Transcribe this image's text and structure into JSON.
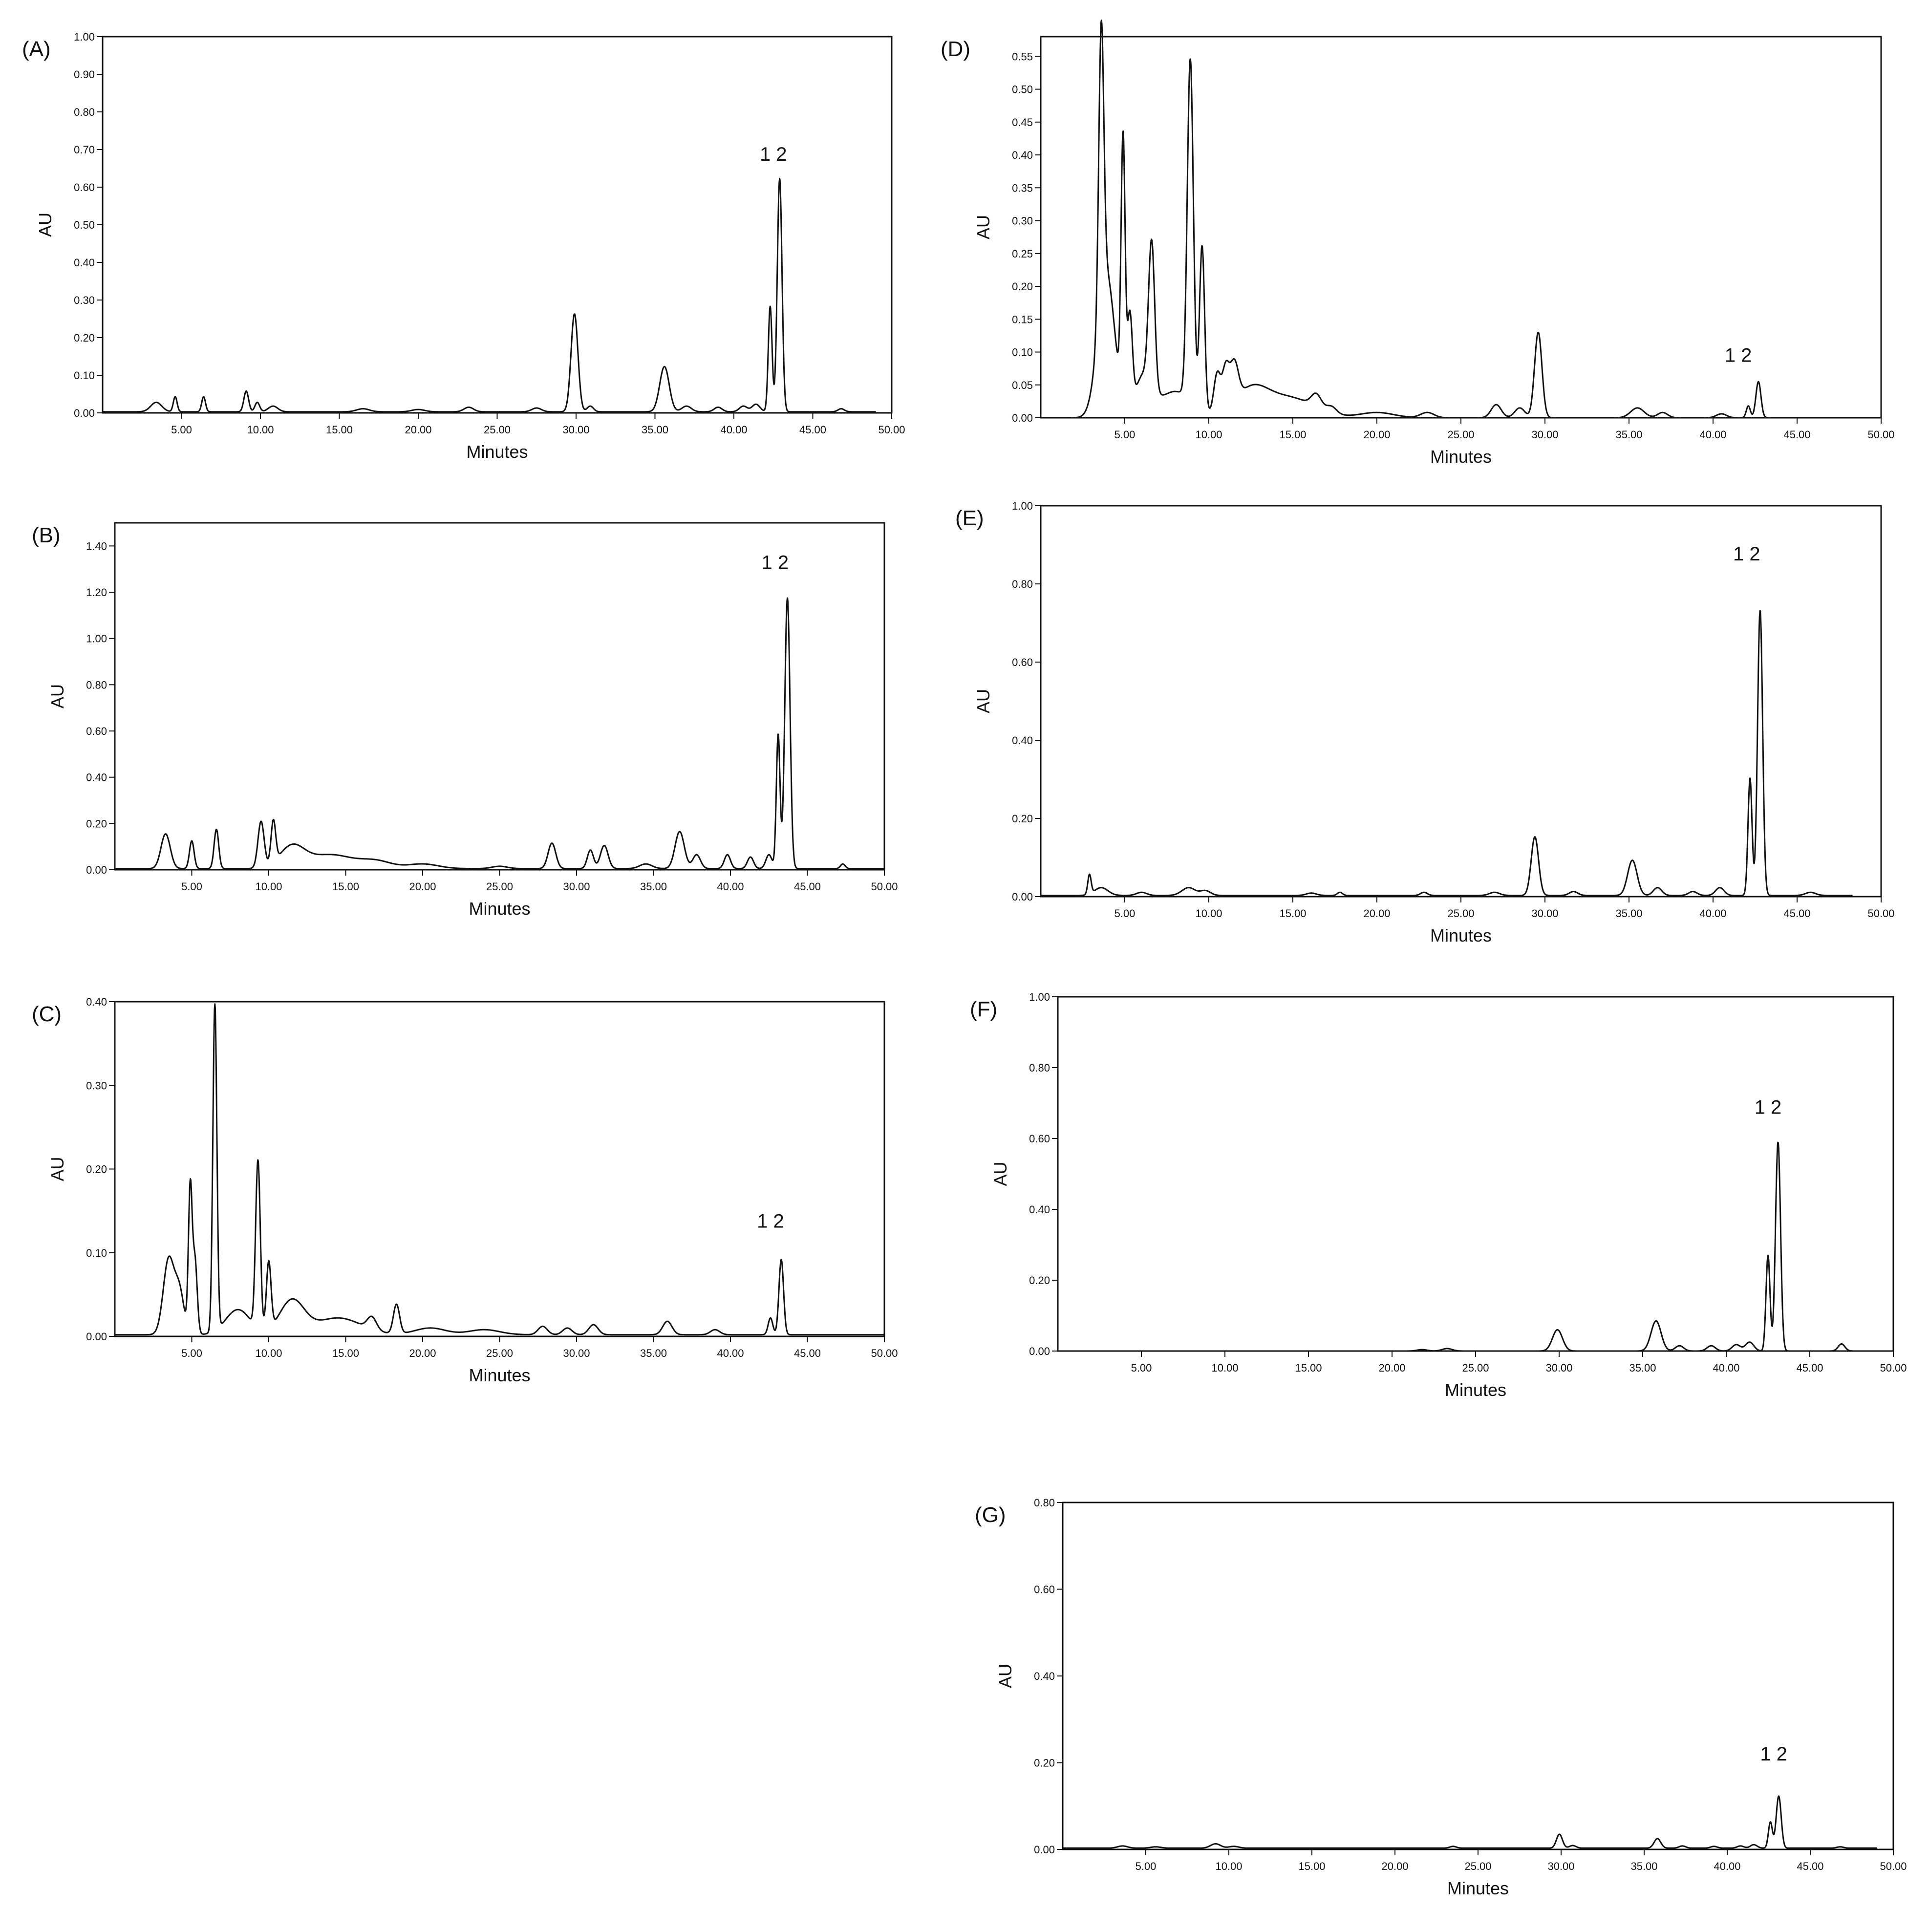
{
  "chart_data": [
    {
      "panel": "(A)",
      "type": "line",
      "xlabel": "Minutes",
      "ylabel": "AU",
      "xlim": [
        0,
        50
      ],
      "ylim": [
        0,
        1.0
      ],
      "x_ticks": [
        "5.00",
        "10.00",
        "15.00",
        "20.00",
        "25.00",
        "30.00",
        "35.00",
        "40.00",
        "45.00",
        "50.00"
      ],
      "y_ticks": [
        "0.00",
        "0.10",
        "0.20",
        "0.30",
        "0.40",
        "0.50",
        "0.60",
        "0.70",
        "0.80",
        "0.90",
        "1.00"
      ],
      "peak_label": "1 2",
      "peak_label_x": 42.5,
      "peak_label_y": 0.67,
      "x_end": 49,
      "baseline": 0.003,
      "peaks": [
        [
          3.4,
          0.025,
          0.35
        ],
        [
          4.6,
          0.04,
          0.12
        ],
        [
          6.4,
          0.04,
          0.12
        ],
        [
          9.1,
          0.055,
          0.15
        ],
        [
          9.8,
          0.025,
          0.15
        ],
        [
          10.8,
          0.015,
          0.3
        ],
        [
          16.5,
          0.008,
          0.4
        ],
        [
          20.0,
          0.006,
          0.4
        ],
        [
          23.2,
          0.012,
          0.3
        ],
        [
          27.5,
          0.01,
          0.3
        ],
        [
          29.9,
          0.26,
          0.22
        ],
        [
          30.9,
          0.015,
          0.2
        ],
        [
          35.6,
          0.12,
          0.3
        ],
        [
          37.0,
          0.015,
          0.3
        ],
        [
          39.0,
          0.012,
          0.25
        ],
        [
          40.6,
          0.015,
          0.25
        ],
        [
          41.4,
          0.02,
          0.25
        ],
        [
          42.3,
          0.28,
          0.12
        ],
        [
          42.9,
          0.62,
          0.15
        ],
        [
          46.8,
          0.008,
          0.2
        ]
      ]
    },
    {
      "panel": "(B)",
      "type": "line",
      "xlabel": "Minutes",
      "ylabel": "AU",
      "xlim": [
        0,
        50
      ],
      "ylim": [
        0,
        1.5
      ],
      "x_ticks": [
        "5.00",
        "10.00",
        "15.00",
        "20.00",
        "25.00",
        "30.00",
        "35.00",
        "40.00",
        "45.00",
        "50.00"
      ],
      "y_ticks": [
        "0.00",
        "0.20",
        "0.40",
        "0.60",
        "0.80",
        "1.00",
        "1.20",
        "1.40"
      ],
      "peak_label": "1 2",
      "peak_label_x": 42.9,
      "peak_label_y": 1.3,
      "x_end": 50,
      "baseline": 0.005,
      "peaks": [
        [
          3.3,
          0.15,
          0.3
        ],
        [
          5.0,
          0.12,
          0.15
        ],
        [
          6.6,
          0.17,
          0.15
        ],
        [
          9.5,
          0.2,
          0.2
        ],
        [
          10.3,
          0.18,
          0.15
        ],
        [
          11.5,
          0.09,
          0.8
        ],
        [
          14.0,
          0.06,
          1.5
        ],
        [
          17.0,
          0.03,
          1.0
        ],
        [
          20.0,
          0.02,
          1.0
        ],
        [
          25.0,
          0.01,
          0.5
        ],
        [
          28.4,
          0.11,
          0.25
        ],
        [
          30.9,
          0.08,
          0.2
        ],
        [
          31.8,
          0.1,
          0.25
        ],
        [
          34.5,
          0.02,
          0.4
        ],
        [
          36.7,
          0.16,
          0.3
        ],
        [
          37.8,
          0.06,
          0.25
        ],
        [
          39.8,
          0.06,
          0.2
        ],
        [
          41.3,
          0.05,
          0.2
        ],
        [
          42.5,
          0.06,
          0.2
        ],
        [
          43.1,
          0.58,
          0.12
        ],
        [
          43.7,
          1.17,
          0.17
        ],
        [
          47.3,
          0.02,
          0.15
        ]
      ]
    },
    {
      "panel": "(C)",
      "type": "line",
      "xlabel": "Minutes",
      "ylabel": "AU",
      "xlim": [
        0,
        50
      ],
      "ylim": [
        0,
        0.4
      ],
      "x_ticks": [
        "5.00",
        "10.00",
        "15.00",
        "20.00",
        "25.00",
        "30.00",
        "35.00",
        "40.00",
        "45.00",
        "50.00"
      ],
      "y_ticks": [
        "0.00",
        "0.10",
        "0.20",
        "0.30",
        "0.40"
      ],
      "peak_label": "1 2",
      "peak_label_x": 42.6,
      "peak_label_y": 0.13,
      "x_end": 50,
      "baseline": 0.002,
      "peaks": [
        [
          3.5,
          0.09,
          0.35
        ],
        [
          4.2,
          0.05,
          0.3
        ],
        [
          4.9,
          0.17,
          0.12
        ],
        [
          5.2,
          0.09,
          0.15
        ],
        [
          6.5,
          0.39,
          0.13
        ],
        [
          8.0,
          0.03,
          0.8
        ],
        [
          9.3,
          0.2,
          0.15
        ],
        [
          10.0,
          0.08,
          0.15
        ],
        [
          11.5,
          0.04,
          0.8
        ],
        [
          14.5,
          0.02,
          1.5
        ],
        [
          16.7,
          0.015,
          0.3
        ],
        [
          18.3,
          0.035,
          0.2
        ],
        [
          20.5,
          0.008,
          1.0
        ],
        [
          24.0,
          0.006,
          1.0
        ],
        [
          27.8,
          0.01,
          0.3
        ],
        [
          29.4,
          0.008,
          0.3
        ],
        [
          31.1,
          0.012,
          0.3
        ],
        [
          35.9,
          0.016,
          0.3
        ],
        [
          39.0,
          0.006,
          0.3
        ],
        [
          42.6,
          0.02,
          0.15
        ],
        [
          43.3,
          0.09,
          0.15
        ]
      ]
    },
    {
      "panel": "(D)",
      "type": "line",
      "xlabel": "Minutes",
      "ylabel": "AU",
      "xlim": [
        0,
        50
      ],
      "ylim": [
        0,
        0.58
      ],
      "x_ticks": [
        "5.00",
        "10.00",
        "15.00",
        "20.00",
        "25.00",
        "30.00",
        "35.00",
        "40.00",
        "45.00",
        "50.00"
      ],
      "y_ticks": [
        "0.00",
        "0.05",
        "0.10",
        "0.15",
        "0.20",
        "0.25",
        "0.30",
        "0.35",
        "0.40",
        "0.45",
        "0.50",
        "0.55"
      ],
      "peak_label": "1 2",
      "peak_label_x": 41.5,
      "peak_label_y": 0.085,
      "x_end": 50,
      "baseline": 0.0,
      "peaks": [
        [
          3.6,
          0.42,
          0.15
        ],
        [
          3.9,
          0.22,
          0.5
        ],
        [
          4.9,
          0.4,
          0.12
        ],
        [
          5.3,
          0.14,
          0.15
        ],
        [
          6.1,
          0.06,
          0.5
        ],
        [
          6.6,
          0.22,
          0.18
        ],
        [
          8.0,
          0.04,
          1.0
        ],
        [
          8.9,
          0.52,
          0.18
        ],
        [
          9.6,
          0.25,
          0.15
        ],
        [
          10.5,
          0.06,
          0.2
        ],
        [
          11.0,
          0.06,
          0.2
        ],
        [
          11.5,
          0.06,
          0.25
        ],
        [
          12.5,
          0.04,
          1.0
        ],
        [
          14.8,
          0.03,
          1.5
        ],
        [
          16.4,
          0.02,
          0.3
        ],
        [
          17.3,
          0.01,
          0.3
        ],
        [
          20.0,
          0.008,
          1.0
        ],
        [
          23.0,
          0.008,
          0.4
        ],
        [
          27.1,
          0.02,
          0.3
        ],
        [
          28.5,
          0.015,
          0.3
        ],
        [
          29.6,
          0.13,
          0.22
        ],
        [
          35.5,
          0.015,
          0.4
        ],
        [
          37.0,
          0.008,
          0.3
        ],
        [
          40.5,
          0.006,
          0.3
        ],
        [
          42.1,
          0.018,
          0.12
        ],
        [
          42.7,
          0.055,
          0.15
        ]
      ]
    },
    {
      "panel": "(E)",
      "type": "line",
      "xlabel": "Minutes",
      "ylabel": "AU",
      "xlim": [
        0,
        50
      ],
      "ylim": [
        0,
        1.0
      ],
      "x_ticks": [
        "5.00",
        "10.00",
        "15.00",
        "20.00",
        "25.00",
        "30.00",
        "35.00",
        "40.00",
        "45.00",
        "50.00"
      ],
      "y_ticks": [
        "0.00",
        "0.20",
        "0.40",
        "0.60",
        "0.80",
        "1.00"
      ],
      "peak_label": "1 2",
      "peak_label_x": 42.0,
      "peak_label_y": 0.86,
      "x_end": 48.3,
      "baseline": 0.003,
      "peaks": [
        [
          2.9,
          0.05,
          0.1
        ],
        [
          3.6,
          0.02,
          0.4
        ],
        [
          6.0,
          0.008,
          0.3
        ],
        [
          8.8,
          0.02,
          0.4
        ],
        [
          9.8,
          0.012,
          0.3
        ],
        [
          16.1,
          0.006,
          0.3
        ],
        [
          17.8,
          0.008,
          0.15
        ],
        [
          22.8,
          0.008,
          0.2
        ],
        [
          27.0,
          0.008,
          0.3
        ],
        [
          29.4,
          0.15,
          0.22
        ],
        [
          31.7,
          0.01,
          0.25
        ],
        [
          35.2,
          0.09,
          0.28
        ],
        [
          36.7,
          0.02,
          0.25
        ],
        [
          38.8,
          0.01,
          0.25
        ],
        [
          40.4,
          0.02,
          0.25
        ],
        [
          42.2,
          0.3,
          0.12
        ],
        [
          42.8,
          0.73,
          0.15
        ],
        [
          45.8,
          0.008,
          0.3
        ]
      ]
    },
    {
      "panel": "(F)",
      "type": "line",
      "xlabel": "Minutes",
      "ylabel": "AU",
      "xlim": [
        0,
        50
      ],
      "ylim": [
        0,
        1.0
      ],
      "x_ticks": [
        "5.00",
        "10.00",
        "15.00",
        "20.00",
        "25.00",
        "30.00",
        "35.00",
        "40.00",
        "45.00",
        "50.00"
      ],
      "y_ticks": [
        "0.00",
        "0.20",
        "0.40",
        "0.60",
        "0.80",
        "1.00"
      ],
      "peak_label": "1 2",
      "peak_label_x": 42.5,
      "peak_label_y": 0.67,
      "x_end": 50,
      "baseline": 0.0,
      "peaks": [
        [
          21.8,
          0.004,
          0.3
        ],
        [
          23.3,
          0.007,
          0.3
        ],
        [
          29.9,
          0.06,
          0.3
        ],
        [
          35.8,
          0.085,
          0.3
        ],
        [
          37.2,
          0.015,
          0.25
        ],
        [
          39.1,
          0.015,
          0.25
        ],
        [
          40.6,
          0.018,
          0.25
        ],
        [
          41.4,
          0.025,
          0.25
        ],
        [
          42.5,
          0.27,
          0.12
        ],
        [
          43.1,
          0.59,
          0.15
        ],
        [
          46.9,
          0.02,
          0.2
        ]
      ]
    },
    {
      "panel": "(G)",
      "type": "line",
      "xlabel": "Minutes",
      "ylabel": "AU",
      "xlim": [
        0,
        50
      ],
      "ylim": [
        0,
        0.8
      ],
      "x_ticks": [
        "5.00",
        "10.00",
        "15.00",
        "20.00",
        "25.00",
        "30.00",
        "35.00",
        "40.00",
        "45.00",
        "50.00"
      ],
      "y_ticks": [
        "0.00",
        "0.20",
        "0.40",
        "0.60",
        "0.80"
      ],
      "peak_label": "1 2",
      "peak_label_x": 42.8,
      "peak_label_y": 0.205,
      "x_end": 49,
      "baseline": 0.003,
      "peaks": [
        [
          3.6,
          0.005,
          0.3
        ],
        [
          5.6,
          0.003,
          0.3
        ],
        [
          9.2,
          0.01,
          0.3
        ],
        [
          10.3,
          0.004,
          0.3
        ],
        [
          23.5,
          0.004,
          0.2
        ],
        [
          29.9,
          0.032,
          0.18
        ],
        [
          30.7,
          0.006,
          0.2
        ],
        [
          35.8,
          0.022,
          0.2
        ],
        [
          37.3,
          0.005,
          0.2
        ],
        [
          39.2,
          0.004,
          0.2
        ],
        [
          40.8,
          0.005,
          0.2
        ],
        [
          41.6,
          0.008,
          0.2
        ],
        [
          42.6,
          0.06,
          0.12
        ],
        [
          43.1,
          0.12,
          0.15
        ],
        [
          46.8,
          0.003,
          0.2
        ]
      ]
    }
  ]
}
